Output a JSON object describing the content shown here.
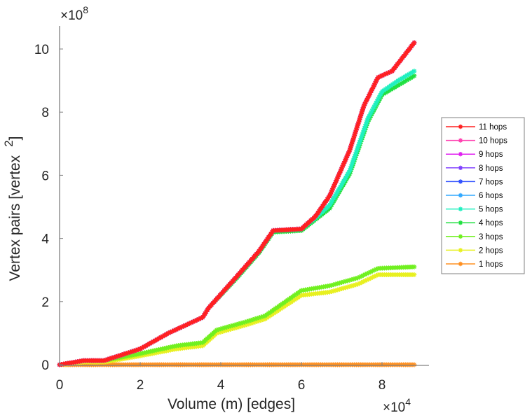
{
  "chart_data": {
    "type": "line",
    "title": "",
    "xlabel": "Volume (m) [edges]",
    "ylabel": "Vertex pairs [vertex",
    "ylabel_superscript": "2",
    "ylabel_close": "]",
    "x_multiplier": "×10",
    "x_multiplier_exp": "4",
    "y_multiplier": "×10",
    "y_multiplier_exp": "8",
    "xlim": [
      0,
      9.2
    ],
    "ylim": [
      0,
      10.7
    ],
    "xticks": [
      0,
      2,
      4,
      6,
      8
    ],
    "xtick_labels": [
      "0",
      "2",
      "4",
      "6",
      "8"
    ],
    "yticks": [
      0,
      2,
      4,
      6,
      8,
      10
    ],
    "ytick_labels": [
      "0",
      "2",
      "4",
      "6",
      "8",
      "10"
    ],
    "grid": false,
    "legend_position": "right",
    "marker": "asterisk",
    "series": [
      {
        "name": "11 hops",
        "color": "#ff2020",
        "x": [
          0,
          0.6,
          1.1,
          2.0,
          2.7,
          3.55,
          3.7,
          4.4,
          4.95,
          5.3,
          6.0,
          6.35,
          6.7,
          7.2,
          7.55,
          7.9,
          8.25,
          8.8
        ],
        "y": [
          0,
          0.13,
          0.13,
          0.5,
          1.0,
          1.5,
          1.8,
          2.8,
          3.6,
          4.25,
          4.3,
          4.7,
          5.35,
          6.8,
          8.2,
          9.1,
          9.3,
          10.2
        ]
      },
      {
        "name": "10 hops",
        "color": "#ff40b0",
        "x": [
          0,
          0.6,
          1.1,
          2.0,
          2.7,
          3.55,
          3.7,
          4.4,
          4.95,
          5.3,
          6.0,
          6.35,
          6.7,
          7.2,
          7.55,
          7.9,
          8.25,
          8.8
        ],
        "y": [
          0,
          0.13,
          0.13,
          0.5,
          1.0,
          1.5,
          1.8,
          2.8,
          3.6,
          4.25,
          4.3,
          4.7,
          5.35,
          6.8,
          8.2,
          9.1,
          9.3,
          10.2
        ]
      },
      {
        "name": "9 hops",
        "color": "#e020f0",
        "x": [
          0,
          0.6,
          1.1,
          2.0,
          2.7,
          3.55,
          3.7,
          4.4,
          4.95,
          5.3,
          6.0,
          6.35,
          6.7,
          7.2,
          7.55,
          7.9,
          8.25,
          8.8
        ],
        "y": [
          0,
          0.13,
          0.13,
          0.5,
          1.0,
          1.5,
          1.8,
          2.8,
          3.6,
          4.25,
          4.3,
          4.7,
          5.35,
          6.8,
          8.2,
          9.1,
          9.3,
          10.2
        ]
      },
      {
        "name": "8 hops",
        "color": "#8040ff",
        "x": [
          0,
          0.6,
          1.1,
          2.0,
          2.7,
          3.55,
          3.7,
          4.4,
          4.95,
          5.3,
          6.0,
          6.35,
          6.7,
          7.2,
          7.55,
          7.9,
          8.25,
          8.8
        ],
        "y": [
          0,
          0.13,
          0.13,
          0.5,
          1.0,
          1.5,
          1.8,
          2.8,
          3.6,
          4.25,
          4.3,
          4.7,
          5.35,
          6.8,
          8.2,
          9.1,
          9.3,
          10.2
        ]
      },
      {
        "name": "7 hops",
        "color": "#3050ff",
        "x": [
          0,
          0.6,
          1.1,
          2.0,
          2.7,
          3.55,
          3.7,
          4.4,
          4.95,
          5.3,
          6.0,
          6.35,
          6.7,
          7.2,
          7.55,
          7.9,
          8.25,
          8.8
        ],
        "y": [
          0,
          0.13,
          0.13,
          0.5,
          1.0,
          1.5,
          1.8,
          2.8,
          3.6,
          4.25,
          4.3,
          4.7,
          5.35,
          6.8,
          8.2,
          9.1,
          9.3,
          10.2
        ]
      },
      {
        "name": "6 hops",
        "color": "#30a8ff",
        "x": [
          0,
          0.6,
          1.1,
          2.0,
          2.7,
          3.55,
          3.7,
          4.4,
          4.95,
          5.3,
          6.0,
          6.35,
          6.7,
          7.2,
          7.55,
          7.9,
          8.25,
          8.8
        ],
        "y": [
          0,
          0.13,
          0.13,
          0.5,
          1.0,
          1.5,
          1.8,
          2.8,
          3.6,
          4.25,
          4.3,
          4.7,
          5.35,
          6.8,
          8.2,
          9.1,
          9.3,
          10.2
        ]
      },
      {
        "name": "5 hops",
        "color": "#20f0c0",
        "x": [
          0,
          0.6,
          1.1,
          2.0,
          2.7,
          3.55,
          3.7,
          4.4,
          4.95,
          5.3,
          6.0,
          6.35,
          6.7,
          7.2,
          7.65,
          8.0,
          8.4,
          8.8
        ],
        "y": [
          0,
          0.13,
          0.13,
          0.5,
          1.0,
          1.5,
          1.8,
          2.8,
          3.6,
          4.25,
          4.3,
          4.65,
          5.05,
          6.15,
          7.8,
          8.65,
          9.0,
          9.3
        ]
      },
      {
        "name": "4 hops",
        "color": "#20e040",
        "x": [
          0,
          0.6,
          1.1,
          2.0,
          2.7,
          3.55,
          3.7,
          4.4,
          4.95,
          5.3,
          6.0,
          6.35,
          6.7,
          7.2,
          7.65,
          8.0,
          8.4,
          8.8
        ],
        "y": [
          0,
          0.13,
          0.13,
          0.5,
          1.0,
          1.5,
          1.8,
          2.75,
          3.55,
          4.2,
          4.25,
          4.6,
          4.95,
          6.05,
          7.7,
          8.55,
          8.85,
          9.15
        ]
      },
      {
        "name": "3 hops",
        "color": "#70f020",
        "x": [
          0,
          0.6,
          1.1,
          2.0,
          2.9,
          3.55,
          3.9,
          4.6,
          5.1,
          6.0,
          6.7,
          7.4,
          7.9,
          8.8
        ],
        "y": [
          0,
          0.13,
          0.13,
          0.35,
          0.6,
          0.7,
          1.1,
          1.35,
          1.55,
          2.35,
          2.5,
          2.75,
          3.05,
          3.1
        ]
      },
      {
        "name": "2 hops",
        "color": "#e8f020",
        "x": [
          0,
          0.6,
          1.1,
          2.0,
          2.9,
          3.55,
          3.9,
          4.6,
          5.1,
          6.0,
          6.7,
          7.4,
          7.9,
          8.8
        ],
        "y": [
          0,
          0.08,
          0.08,
          0.28,
          0.5,
          0.6,
          1.0,
          1.25,
          1.45,
          2.2,
          2.3,
          2.55,
          2.85,
          2.85
        ]
      },
      {
        "name": "1 hops",
        "color": "#ff9020",
        "x": [
          0,
          1,
          2,
          3,
          4,
          5,
          6,
          7,
          8,
          8.8
        ],
        "y": [
          0,
          0,
          0,
          0,
          0,
          0,
          0,
          0,
          0,
          0
        ]
      }
    ]
  }
}
